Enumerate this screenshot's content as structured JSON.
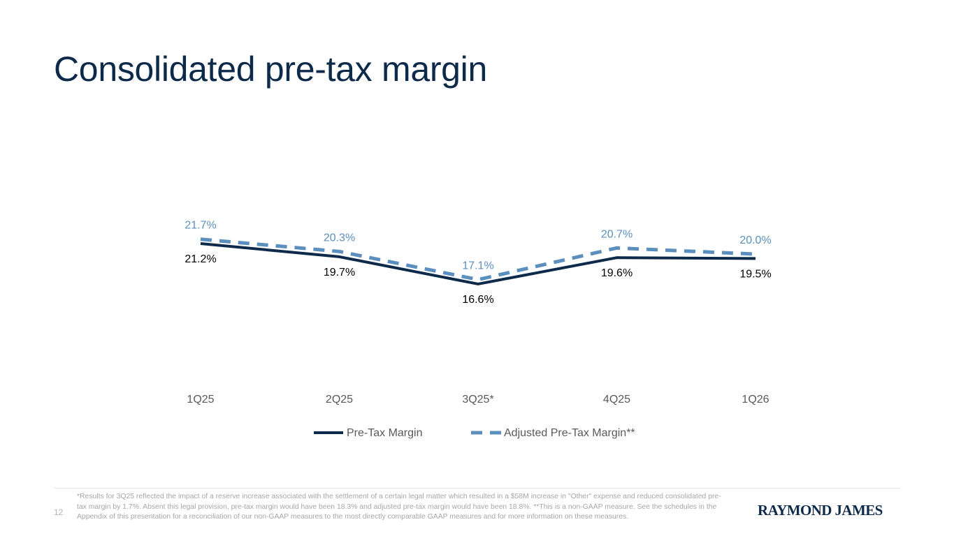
{
  "page": {
    "title": "Consolidated pre-tax margin",
    "page_number": "12",
    "footnote": "*Results for 3Q25 reflected the impact of a reserve increase associated with the settlement of a certain legal matter which resulted in a $58M increase in \"Other\" expense and reduced consolidated pre-tax margin by 1.7%. Absent this legal provision, pre-tax margin would have been 18.3% and adjusted pre-tax margin would have been 18.8%.  **This is a non-GAAP measure. See the schedules in the Appendix of this presentation for a reconciliation of our non-GAAP measures to the most directly comparable GAAP measures and for more information on these measures.",
    "logo_text": "RAYMOND JAMES"
  },
  "chart_data": {
    "type": "line",
    "title": "Consolidated pre-tax margin",
    "xlabel": "",
    "ylabel": "",
    "categories": [
      "1Q25",
      "2Q25",
      "3Q25*",
      "4Q25",
      "1Q26"
    ],
    "series": [
      {
        "name": "Pre-Tax Margin",
        "values": [
          21.2,
          19.7,
          16.6,
          19.6,
          19.5
        ],
        "labels": [
          "21.2%",
          "19.7%",
          "16.6%",
          "19.6%",
          "19.5%"
        ],
        "color": "#0e2a4b",
        "style": "solid"
      },
      {
        "name": "Adjusted Pre-Tax Margin**",
        "values": [
          21.7,
          20.3,
          17.1,
          20.7,
          20.0
        ],
        "labels": [
          "21.7%",
          "20.3%",
          "17.1%",
          "20.7%",
          "20.0%"
        ],
        "color": "#5b8fbd",
        "style": "dashed"
      }
    ],
    "grid": false,
    "y_axis_visible": false,
    "legend_position": "bottom"
  }
}
